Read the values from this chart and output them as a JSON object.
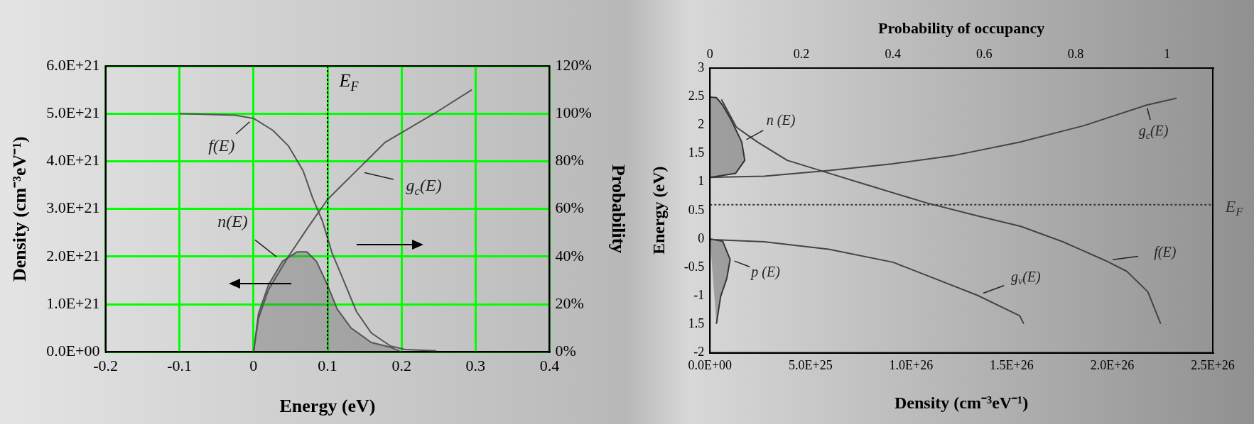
{
  "chart_data": [
    {
      "type": "line",
      "xlabel": "Energy (eV)",
      "ylabel": "Density (cm⁻³eV⁻¹)",
      "y2label": "Probability",
      "xlim": [
        -0.2,
        0.4
      ],
      "xticks": [
        -0.2,
        -0.1,
        0,
        0.1,
        0.2,
        0.3,
        0.4
      ],
      "ylim": [
        0,
        6e+21
      ],
      "yticks": [
        {
          "value": 0,
          "label": "0.0E+00"
        },
        {
          "value": 1e+21,
          "label": "1.0E+21"
        },
        {
          "value": 2e+21,
          "label": "2.0E+21"
        },
        {
          "value": 3e+21,
          "label": "3.0E+21"
        },
        {
          "value": 4e+21,
          "label": "4.0E+21"
        },
        {
          "value": 5e+21,
          "label": "5.0E+21"
        },
        {
          "value": 6e+21,
          "label": "6.0E+21"
        }
      ],
      "y2lim": [
        0,
        120
      ],
      "y2ticks": [
        {
          "value": 0,
          "label": "0%"
        },
        {
          "value": 20,
          "label": "20%"
        },
        {
          "value": 40,
          "label": "40%"
        },
        {
          "value": 60,
          "label": "60%"
        },
        {
          "value": 80,
          "label": "80%"
        },
        {
          "value": 100,
          "label": "100%"
        },
        {
          "value": 120,
          "label": "120%"
        }
      ],
      "grid": true,
      "legend": false,
      "marker": "none",
      "series": [
        {
          "name": "f(E)",
          "axis": "y2",
          "color": "#555555",
          "x": [
            -0.1,
            -0.025,
            0,
            0.026,
            0.047,
            0.067,
            0.08,
            0.093,
            0.106,
            0.119,
            0.139,
            0.159,
            0.185,
            0.205,
            0.247
          ],
          "values": [
            100,
            99.3,
            98,
            93,
            86.5,
            76,
            64.5,
            55,
            41.6,
            32,
            17,
            8,
            2.5,
            1,
            0.5
          ]
        },
        {
          "name": "g$_{c}$(E)",
          "color": "#555555",
          "x": [
            0,
            0.0066,
            0.02,
            0.047,
            0.073,
            0.1,
            0.139,
            0.178,
            0.244,
            0.295
          ],
          "values": [
            0,
            7e+20,
            1.3e+21,
            2e+21,
            2.6e+21,
            3.2e+21,
            3.8e+21,
            4.4e+21,
            5e+21,
            5.5e+21
          ]
        },
        {
          "name": "n(E)",
          "type": "area",
          "color": "#555555",
          "x": [
            0,
            0.0066,
            0.02,
            0.039,
            0.059,
            0.072,
            0.085,
            0.1,
            0.113,
            0.132,
            0.159,
            0.185,
            0.2
          ],
          "values": [
            0,
            8e+20,
            1.4e+21,
            1.9e+21,
            2.1e+21,
            2.1e+21,
            1.9e+21,
            1.4e+21,
            9e+20,
            5e+20,
            2e+20,
            1e+20,
            0
          ]
        }
      ],
      "ref_lines": [
        {
          "axis": "x",
          "value": 0.1,
          "label": "E$_{F}$",
          "color": "#000000",
          "line_style": "dotted"
        }
      ]
    },
    {
      "type": "line",
      "xlabel": "Density (cm⁻³eV⁻¹)",
      "ylabel": "Energy (eV)",
      "x2label": "Probability of occupancy",
      "xlim": [
        0,
        2.5e+26
      ],
      "xticks": [
        {
          "value": 0,
          "label": "0.0E+00"
        },
        {
          "value": 5e+25,
          "label": "5.0E+25"
        },
        {
          "value": 1e+26,
          "label": "1.0E+26"
        },
        {
          "value": 1.5e+26,
          "label": "1.5E+26"
        },
        {
          "value": 2e+26,
          "label": "2.0E+26"
        },
        {
          "value": 2.5e+26,
          "label": "2.5E+26"
        }
      ],
      "x2lim": [
        0,
        1.1
      ],
      "x2ticks": [
        0,
        0.2,
        0.4,
        0.6,
        0.8,
        1
      ],
      "ylim": [
        -2,
        3
      ],
      "yticks": [
        -2,
        {
          "value": -1.5,
          "label": "1.5"
        },
        -1,
        -0.5,
        0,
        0.5,
        1,
        1.5,
        2,
        2.5,
        3
      ],
      "grid": false,
      "legend": false,
      "marker": "none",
      "series": [
        {
          "name": "n (E)",
          "type": "area",
          "color": "#333333",
          "x": [
            0,
            1.27e+25,
            1.73e+25,
            1.58e+25,
            1.05e+25,
            6.3e+24,
            3.2e+24,
            0
          ],
          "values": [
            1.08,
            1.15,
            1.38,
            1.7,
            2.09,
            2.35,
            2.48,
            2.49
          ]
        },
        {
          "name": "g$_{c}$(E)",
          "color": "#444444",
          "x": [
            0,
            2.7e+25,
            5.9e+25,
            9.1e+25,
            1.22e+26,
            1.54e+26,
            1.86e+26,
            2.17e+26,
            2.32e+26
          ],
          "values": [
            1.08,
            1.1,
            1.2,
            1.32,
            1.47,
            1.7,
            1.99,
            2.35,
            2.47
          ]
        },
        {
          "name": "f(E)",
          "axis": "x2",
          "color": "#444444",
          "x": [
            0.025,
            0.058,
            0.104,
            0.169,
            0.262,
            0.355,
            0.475,
            0.587,
            0.68,
            0.772,
            0.865,
            0.912,
            0.958,
            0.986
          ],
          "values": [
            2.45,
            1.96,
            1.7,
            1.38,
            1.15,
            0.92,
            0.63,
            0.4,
            0.22,
            -0.05,
            -0.38,
            -0.57,
            -0.93,
            -1.49
          ]
        },
        {
          "name": "g$_{v}$(E)",
          "color": "#444444",
          "x": [
            0,
            2.7e+25,
            5.9e+25,
            9.1e+25,
            1.12e+26,
            1.33e+26,
            1.54e+26,
            1.56e+26
          ],
          "values": [
            -0.01,
            -0.05,
            -0.18,
            -0.41,
            -0.7,
            -0.99,
            -1.35,
            -1.49
          ]
        },
        {
          "name": "p (E)",
          "type": "area",
          "color": "#333333",
          "x": [
            0,
            6.3e+24,
            1e+25,
            8.4e+24,
            5.3e+24,
            3.2e+24
          ],
          "values": [
            0,
            -0.04,
            -0.36,
            -0.69,
            -1.01,
            -1.49
          ]
        }
      ],
      "ref_lines": [
        {
          "axis": "y",
          "value": 0.6,
          "label": "E$_{F}$",
          "color": "#333333",
          "line_style": "dotted"
        }
      ]
    }
  ]
}
